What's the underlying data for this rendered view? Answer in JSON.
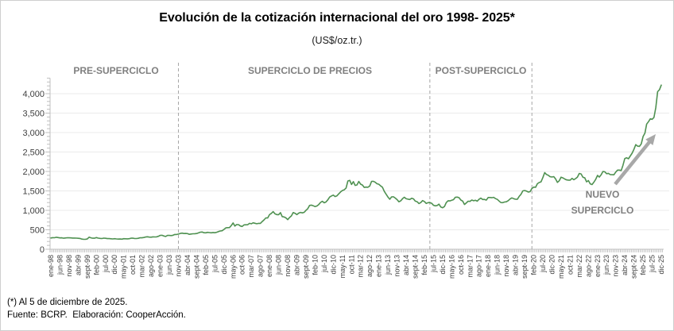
{
  "chart_data": {
    "type": "line",
    "title": "Evolución de la cotización internacional del oro 1998- 2025*",
    "subtitle": "(US$/oz.tr.)",
    "unit": "US$/oz.tr.",
    "footnote": "(*) Al 5 de diciembre de 2025.",
    "source": "Fuente: BCRP.  Elaboración: CooperAcción.",
    "legend": "none",
    "grid": "horizontal",
    "ylim": [
      0,
      4400
    ],
    "y_major_step": 500,
    "y_minor_step": 100,
    "y_tick_labels": [
      "0",
      "500",
      "1,000",
      "1,500",
      "2,000",
      "2,500",
      "3,000",
      "3,500",
      "4,000"
    ],
    "x_months_per_tick": 5,
    "x_tick_labels": [
      "ene-98",
      "jun-98",
      "nov-98",
      "abr-99",
      "sept-99",
      "feb-00",
      "jul-00",
      "dic-00",
      "may-01",
      "oct-01",
      "mar-02",
      "ago-02",
      "ene-03",
      "jun-03",
      "nov-03",
      "abr-04",
      "sept-04",
      "feb-05",
      "jul-05",
      "dic-05",
      "may-06",
      "oct-06",
      "mar-07",
      "ago-07",
      "ene-08",
      "jun-08",
      "nov-08",
      "abr-09",
      "sept-09",
      "feb-10",
      "jul-10",
      "dic-10",
      "may-11",
      "oct-11",
      "mar-12",
      "ago-12",
      "ene-13",
      "jun-13",
      "nov-13",
      "abr-14",
      "sept-14",
      "feb-15",
      "jul-15",
      "dic-15",
      "may-16",
      "oct-16",
      "mar-17",
      "ago-17",
      "ene-18",
      "jun-18",
      "nov-18",
      "abr-19",
      "sept-19",
      "feb-20",
      "jul-20",
      "dic-20",
      "may-21",
      "oct-21",
      "mar-22",
      "ago-22",
      "ene-23",
      "jun-23",
      "nov-23",
      "abr-24",
      "sept-24",
      "feb-25",
      "jul-25",
      "dic-25"
    ],
    "series": [
      {
        "name": "cotizacion-internacional-del-oro",
        "color": "#4f9151",
        "start": "ene-98",
        "end": "dic-25",
        "monthly_values": [
          289,
          297,
          296,
          308,
          299,
          292,
          293,
          284,
          289,
          296,
          294,
          291,
          287,
          287,
          286,
          282,
          277,
          261,
          256,
          257,
          264,
          311,
          293,
          283,
          284,
          300,
          286,
          280,
          275,
          286,
          282,
          274,
          274,
          270,
          266,
          272,
          265,
          262,
          263,
          260,
          272,
          270,
          268,
          272,
          284,
          283,
          276,
          276,
          281,
          295,
          294,
          303,
          314,
          321,
          313,
          310,
          319,
          317,
          319,
          333,
          357,
          359,
          341,
          328,
          355,
          356,
          351,
          360,
          379,
          379,
          390,
          407,
          414,
          405,
          407,
          403,
          384,
          392,
          398,
          400,
          405,
          420,
          439,
          442,
          424,
          423,
          434,
          429,
          422,
          430,
          424,
          437,
          456,
          470,
          476,
          510,
          550,
          555,
          557,
          611,
          675,
          596,
          634,
          632,
          598,
          586,
          627,
          629,
          631,
          665,
          655,
          679,
          667,
          655,
          665,
          665,
          713,
          755,
          806,
          804,
          890,
          922,
          968,
          910,
          889,
          889,
          940,
          839,
          830,
          807,
          761,
          816,
          858,
          943,
          924,
          890,
          929,
          946,
          934,
          949,
          997,
          1043,
          1127,
          1135,
          1118,
          1095,
          1113,
          1149,
          1205,
          1233,
          1193,
          1216,
          1271,
          1342,
          1370,
          1391,
          1356,
          1373,
          1424,
          1474,
          1511,
          1529,
          1573,
          1756,
          1772,
          1666,
          1739,
          1640,
          1654,
          1743,
          1674,
          1650,
          1589,
          1597,
          1594,
          1626,
          1745,
          1747,
          1722,
          1684,
          1671,
          1628,
          1593,
          1487,
          1414,
          1343,
          1286,
          1347,
          1348,
          1316,
          1276,
          1221,
          1244,
          1301,
          1336,
          1298,
          1288,
          1279,
          1311,
          1296,
          1237,
          1222,
          1175,
          1201,
          1251,
          1227,
          1178,
          1198,
          1199,
          1181,
          1130,
          1117,
          1125,
          1159,
          1086,
          1068,
          1097,
          1200,
          1246,
          1242,
          1260,
          1276,
          1337,
          1340,
          1327,
          1266,
          1238,
          1152,
          1192,
          1234,
          1231,
          1266,
          1246,
          1260,
          1236,
          1283,
          1314,
          1280,
          1282,
          1264,
          1331,
          1330,
          1325,
          1335,
          1303,
          1281,
          1238,
          1201,
          1198,
          1215,
          1221,
          1250,
          1291,
          1320,
          1301,
          1286,
          1284,
          1359,
          1413,
          1500,
          1511,
          1495,
          1471,
          1479,
          1561,
          1597,
          1592,
          1683,
          1716,
          1732,
          1843,
          1969,
          1922,
          1900,
          1866,
          1858,
          1867,
          1808,
          1718,
          1762,
          1853,
          1835,
          1807,
          1784,
          1777,
          1777,
          1822,
          1787,
          1816,
          1856,
          1948,
          1937,
          1850,
          1836,
          1732,
          1765,
          1681,
          1664,
          1725,
          1797,
          1898,
          1855,
          1913,
          2000,
          1992,
          1943,
          1951,
          1919,
          1916,
          1915,
          1984,
          2034,
          2034,
          2025,
          2160,
          2332,
          2351,
          2327,
          2398,
          2470,
          2570,
          2690,
          2652,
          2644,
          2708,
          2897,
          2983,
          3218,
          3280,
          3353,
          3340,
          3390,
          3640,
          4050,
          4100,
          4220
        ]
      }
    ],
    "separators_month_index": [
      70,
      208,
      264
    ],
    "periods": [
      {
        "label": "PRE-SUPERCICLO",
        "from_month": 0,
        "to_month": 70
      },
      {
        "label": "SUPERCICLO DE PRECIOS",
        "from_month": 70,
        "to_month": 208
      },
      {
        "label": "POST-SUPERCICLO",
        "from_month": 208,
        "to_month": 264
      },
      {
        "label_line1": "NUEVO",
        "label_line2": "SUPERCICLO",
        "from_month": 264,
        "to_month": 335
      }
    ],
    "annotation_arrow": "up-right",
    "colors": {
      "line": "#4f9151",
      "grid": "#ebebeb",
      "axis": "#bfbfbf",
      "tick_label": "#404040",
      "separator": "#a6a6a6",
      "period_label": "#7f7f7f",
      "arrow": "#a8a8a8"
    }
  }
}
